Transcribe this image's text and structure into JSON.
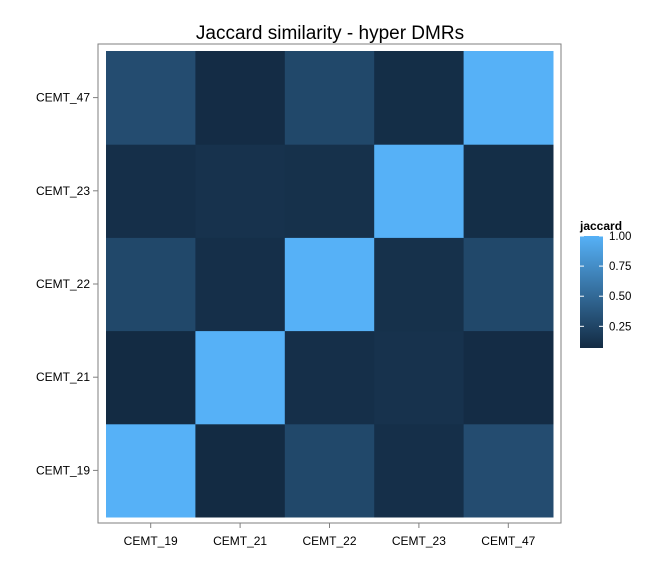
{
  "chart_data": {
    "type": "heatmap",
    "title": "Jaccard similarity - hyper DMRs",
    "xlabel": "",
    "ylabel": "",
    "x_categories": [
      "CEMT_19",
      "CEMT_21",
      "CEMT_22",
      "CEMT_23",
      "CEMT_47"
    ],
    "y_categories": [
      "CEMT_19",
      "CEMT_21",
      "CEMT_22",
      "CEMT_23",
      "CEMT_47"
    ],
    "values": [
      [
        1.0,
        0.07,
        0.27,
        0.1,
        0.3
      ],
      [
        0.07,
        1.0,
        0.1,
        0.12,
        0.08
      ],
      [
        0.27,
        0.1,
        1.0,
        0.11,
        0.27
      ],
      [
        0.1,
        0.12,
        0.11,
        1.0,
        0.09
      ],
      [
        0.3,
        0.08,
        0.27,
        0.09,
        1.0
      ]
    ],
    "value_range": [
      0.07,
      1.0
    ],
    "colors": {
      "low": "#132B43",
      "high": "#56B1F7"
    },
    "legend": {
      "title": "jaccard",
      "breaks": [
        0.25,
        0.5,
        0.75,
        1.0
      ],
      "labels": [
        "0.25",
        "0.50",
        "0.75",
        "1.00"
      ],
      "position": "right"
    },
    "grid": false
  }
}
